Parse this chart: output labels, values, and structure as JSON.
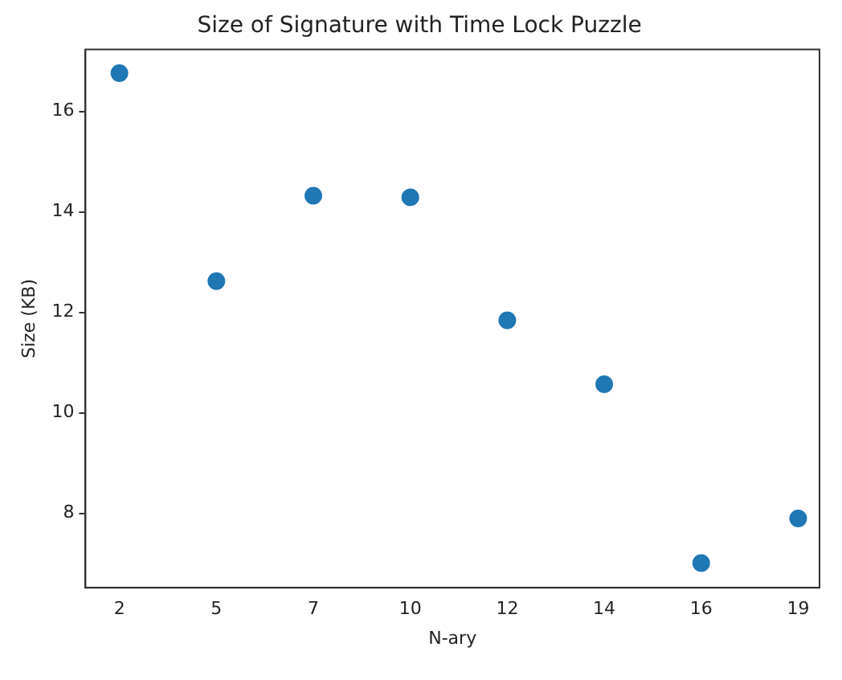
{
  "chart_data": {
    "type": "scatter",
    "title": "Size of Signature with Time Lock Puzzle",
    "xlabel": "N-ary",
    "ylabel": "Size (KB)",
    "categories": [
      "2",
      "5",
      "7",
      "10",
      "12",
      "14",
      "16",
      "19"
    ],
    "series": [
      {
        "color": "#1f77b4",
        "values": [
          16.76,
          12.62,
          14.32,
          14.29,
          11.84,
          10.57,
          7.01,
          7.9
        ]
      }
    ],
    "ylim": [
      6.52,
      17.23
    ],
    "yticks": [
      8,
      10,
      12,
      14,
      16
    ],
    "grid": false,
    "legend": false,
    "marker": "circle"
  }
}
